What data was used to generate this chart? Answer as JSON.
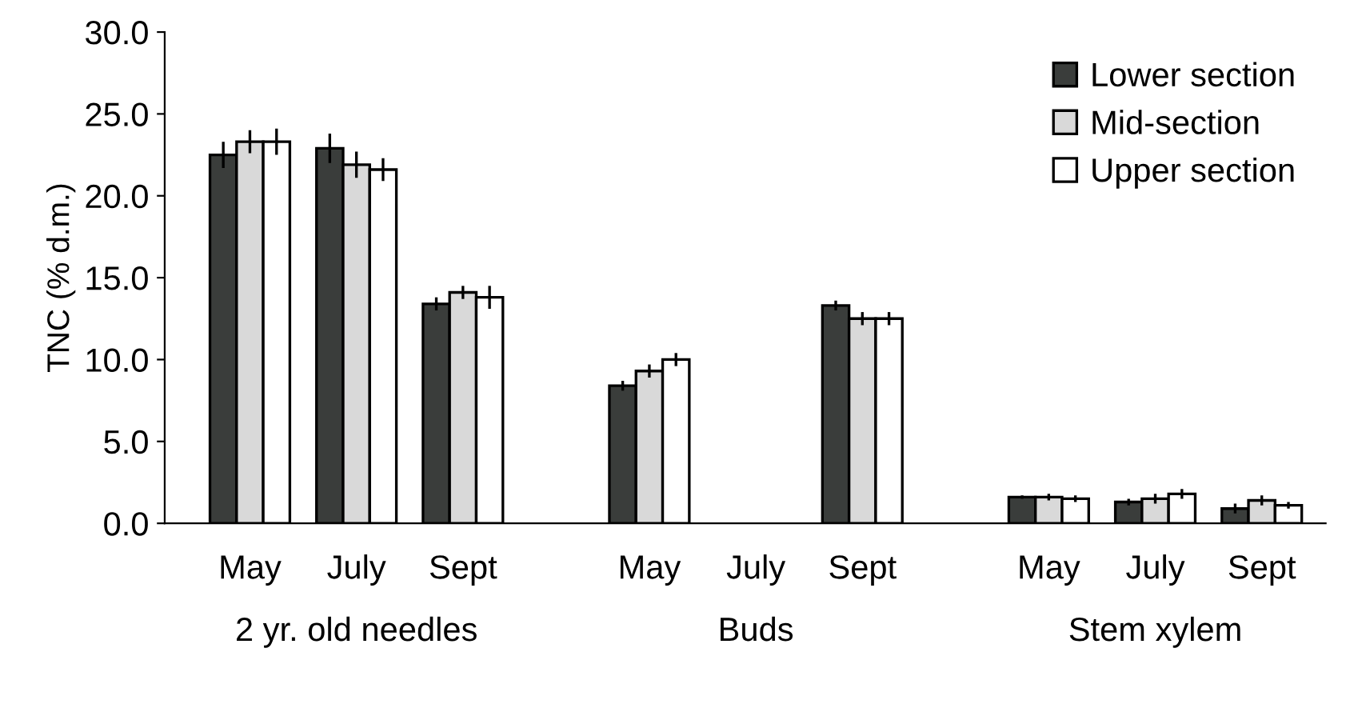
{
  "chart_data": {
    "type": "bar",
    "ylabel": "TNC (% d.m.)",
    "categories": [
      "May",
      "July",
      "Sept",
      "May",
      "July",
      "Sept",
      "May",
      "July",
      "Sept"
    ],
    "series": [
      {
        "name": "Lower section",
        "color": "#3a3d3b",
        "values": [
          22.5,
          22.9,
          13.4,
          8.4,
          null,
          13.3,
          1.6,
          1.3,
          0.9
        ],
        "errors": [
          0.8,
          0.9,
          0.4,
          0.3,
          null,
          0.3,
          0.1,
          0.2,
          0.3
        ]
      },
      {
        "name": "Mid-section",
        "color": "#d9d9d9",
        "values": [
          23.3,
          21.9,
          14.1,
          9.3,
          null,
          12.5,
          1.6,
          1.5,
          1.4
        ],
        "errors": [
          0.7,
          0.8,
          0.4,
          0.4,
          null,
          0.4,
          0.2,
          0.3,
          0.3
        ]
      },
      {
        "name": "Upper section",
        "color": "#ffffff",
        "values": [
          23.3,
          21.6,
          13.8,
          10.0,
          null,
          12.5,
          1.5,
          1.8,
          1.1
        ],
        "errors": [
          0.8,
          0.7,
          0.7,
          0.4,
          null,
          0.4,
          0.2,
          0.3,
          0.2
        ]
      }
    ],
    "ylim": [
      0,
      30
    ],
    "yticks": [
      {
        "value": 0,
        "label": "0.0"
      },
      {
        "value": 5,
        "label": "5.0"
      },
      {
        "value": 10,
        "label": "10.0"
      },
      {
        "value": 15,
        "label": "15.0"
      },
      {
        "value": 20,
        "label": "20.0"
      },
      {
        "value": 25,
        "label": "25.0"
      },
      {
        "value": 30,
        "label": "30.0"
      }
    ],
    "annotations": [
      "2 yr. old needles",
      "Buds",
      "Stem xylem"
    ],
    "legend": "top right",
    "grid": false
  }
}
